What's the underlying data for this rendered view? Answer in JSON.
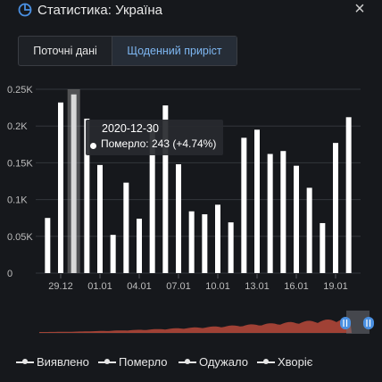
{
  "header": {
    "title": "Статистика: Україна",
    "close_symbol": "×"
  },
  "tabs": [
    {
      "label": "Поточні дані",
      "active": false
    },
    {
      "label": "Щоденний приріст",
      "active": true
    }
  ],
  "tooltip": {
    "date": "2020-12-30",
    "text": "Померло: 243 (+4.74%)"
  },
  "legend": [
    {
      "label": "Виявлено"
    },
    {
      "label": "Померло"
    },
    {
      "label": "Одужало"
    },
    {
      "label": "Хворіє"
    }
  ],
  "colors": {
    "accent": "#7eb7f2",
    "bar": "#ffffff",
    "bar_highlight": "#d9d9d9",
    "navigator": "#c0503e",
    "handle": "#4a90e2"
  },
  "chart_data": {
    "type": "bar",
    "series": [
      {
        "name": "Померло",
        "values": [
          75,
          232,
          243,
          210,
          147,
          52,
          123,
          74,
          201,
          228,
          148,
          84,
          80,
          93,
          69,
          184,
          195,
          162,
          166,
          146,
          116,
          68,
          177,
          212
        ]
      }
    ],
    "categories": [
      "2020-12-28",
      "2020-12-29",
      "2020-12-30",
      "2020-12-31",
      "2021-01-01",
      "2021-01-02",
      "2021-01-03",
      "2021-01-04",
      "2021-01-05",
      "2021-01-06",
      "2021-01-07",
      "2021-01-08",
      "2021-01-09",
      "2021-01-10",
      "2021-01-11",
      "2021-01-12",
      "2021-01-13",
      "2021-01-14",
      "2021-01-15",
      "2021-01-16",
      "2021-01-17",
      "2021-01-18",
      "2021-01-19",
      "2021-01-20"
    ],
    "highlight_index": 2,
    "ylim": [
      0,
      250
    ],
    "yticks": [
      "0",
      "0.05K",
      "0.1K",
      "0.15K",
      "0.2K",
      "0.25K"
    ],
    "xticks": [
      {
        "index": 1,
        "label": "29.12"
      },
      {
        "index": 4,
        "label": "01.01"
      },
      {
        "index": 7,
        "label": "04.01"
      },
      {
        "index": 10,
        "label": "07.01"
      },
      {
        "index": 13,
        "label": "10.01"
      },
      {
        "index": 16,
        "label": "13.01"
      },
      {
        "index": 19,
        "label": "16.01"
      },
      {
        "index": 22,
        "label": "19.01"
      }
    ],
    "grid": true
  }
}
